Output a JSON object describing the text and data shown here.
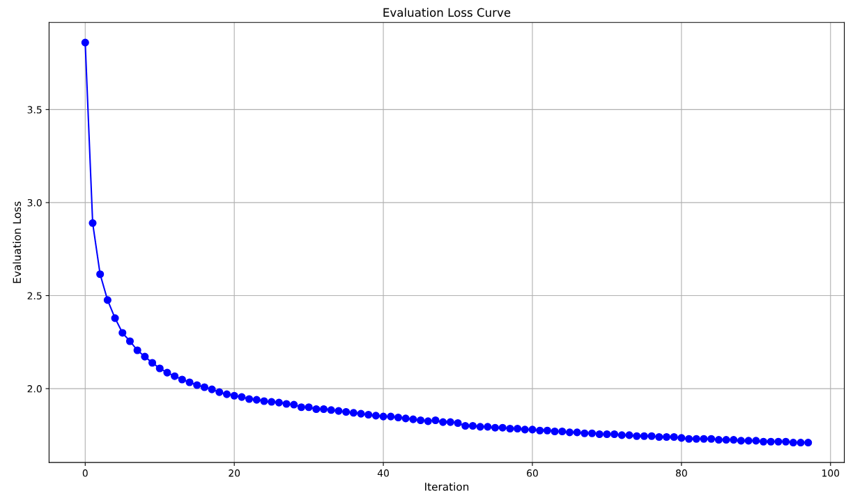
{
  "chart_data": {
    "type": "line",
    "title": "Evaluation Loss Curve",
    "xlabel": "Iteration",
    "ylabel": "Evaluation Loss",
    "x": [
      0,
      1,
      2,
      3,
      4,
      5,
      6,
      7,
      8,
      9,
      10,
      11,
      12,
      13,
      14,
      15,
      16,
      17,
      18,
      19,
      20,
      21,
      22,
      23,
      24,
      25,
      26,
      27,
      28,
      29,
      30,
      31,
      32,
      33,
      34,
      35,
      36,
      37,
      38,
      39,
      40,
      41,
      42,
      43,
      44,
      45,
      46,
      47,
      48,
      49,
      50,
      51,
      52,
      53,
      54,
      55,
      56,
      57,
      58,
      59,
      60,
      61,
      62,
      63,
      64,
      65,
      66,
      67,
      68,
      69,
      70,
      71,
      72,
      73,
      74,
      75,
      76,
      77,
      78,
      79,
      80,
      81,
      82,
      83,
      84,
      85,
      86,
      87,
      88,
      89,
      90,
      91,
      92,
      93,
      94,
      95,
      96,
      97
    ],
    "series": [
      {
        "color": "#0000ff",
        "values": [
          3.86,
          2.89,
          2.615,
          2.476,
          2.379,
          2.3,
          2.255,
          2.206,
          2.172,
          2.139,
          2.109,
          2.086,
          2.067,
          2.049,
          2.034,
          2.019,
          2.008,
          1.996,
          1.981,
          1.97,
          1.962,
          1.955,
          1.944,
          1.94,
          1.933,
          1.929,
          1.925,
          1.918,
          1.914,
          1.9,
          1.9,
          1.89,
          1.89,
          1.885,
          1.88,
          1.875,
          1.87,
          1.865,
          1.86,
          1.855,
          1.85,
          1.85,
          1.845,
          1.84,
          1.835,
          1.83,
          1.825,
          1.83,
          1.82,
          1.82,
          1.815,
          1.8,
          1.8,
          1.795,
          1.795,
          1.79,
          1.79,
          1.785,
          1.785,
          1.78,
          1.78,
          1.775,
          1.775,
          1.77,
          1.77,
          1.765,
          1.765,
          1.76,
          1.76,
          1.755,
          1.755,
          1.755,
          1.75,
          1.75,
          1.745,
          1.745,
          1.745,
          1.74,
          1.74,
          1.74,
          1.735,
          1.73,
          1.73,
          1.73,
          1.73,
          1.725,
          1.725,
          1.725,
          1.72,
          1.72,
          1.72,
          1.715,
          1.715,
          1.715,
          1.715,
          1.71,
          1.71,
          1.71
        ]
      }
    ],
    "xlim": [
      -4.85,
      101.85
    ],
    "ylim": [
      1.603,
      3.968
    ],
    "xticks": [
      0,
      20,
      40,
      60,
      80,
      100
    ],
    "yticks": [
      {
        "value": 2,
        "label": "2.0"
      },
      {
        "value": 2.5,
        "label": "2.5"
      },
      {
        "value": 3,
        "label": "3.0"
      },
      {
        "value": 3.5,
        "label": "3.5"
      }
    ],
    "grid": true,
    "marker": "circle",
    "line_style": "solid",
    "legend": false
  }
}
